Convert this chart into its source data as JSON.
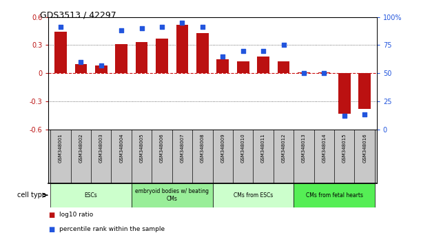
{
  "title": "GDS3513 / 42297",
  "samples": [
    "GSM348001",
    "GSM348002",
    "GSM348003",
    "GSM348004",
    "GSM348005",
    "GSM348006",
    "GSM348007",
    "GSM348008",
    "GSM348009",
    "GSM348010",
    "GSM348011",
    "GSM348012",
    "GSM348013",
    "GSM348014",
    "GSM348015",
    "GSM348016"
  ],
  "log10_ratio": [
    0.44,
    0.1,
    0.08,
    0.31,
    0.33,
    0.37,
    0.52,
    0.43,
    0.15,
    0.13,
    0.18,
    0.13,
    0.01,
    0.01,
    -0.43,
    -0.38
  ],
  "percentile_rank": [
    91,
    60,
    57,
    88,
    90,
    91,
    95,
    91,
    65,
    70,
    70,
    75,
    50,
    50,
    12,
    13
  ],
  "ylim_left": [
    -0.6,
    0.6
  ],
  "ylim_right": [
    0,
    100
  ],
  "yticks_left": [
    -0.6,
    -0.3,
    0.0,
    0.3,
    0.6
  ],
  "yticks_right": [
    0,
    25,
    50,
    75,
    100
  ],
  "bar_color": "#BB1111",
  "dot_color": "#2255DD",
  "hline_color": "#CC1111",
  "cell_groups": [
    {
      "label": "ESCs",
      "start": 0,
      "end": 3,
      "color": "#CCFFCC"
    },
    {
      "label": "embryoid bodies w/ beating\nCMs",
      "start": 4,
      "end": 7,
      "color": "#99EE99"
    },
    {
      "label": "CMs from ESCs",
      "start": 8,
      "end": 11,
      "color": "#CCFFCC"
    },
    {
      "label": "CMs from fetal hearts",
      "start": 12,
      "end": 15,
      "color": "#55EE55"
    }
  ],
  "legend_bar_label": "log10 ratio",
  "legend_dot_label": "percentile rank within the sample",
  "cell_type_label": "cell type",
  "background_color": "#FFFFFF",
  "sample_box_color": "#C8C8C8"
}
